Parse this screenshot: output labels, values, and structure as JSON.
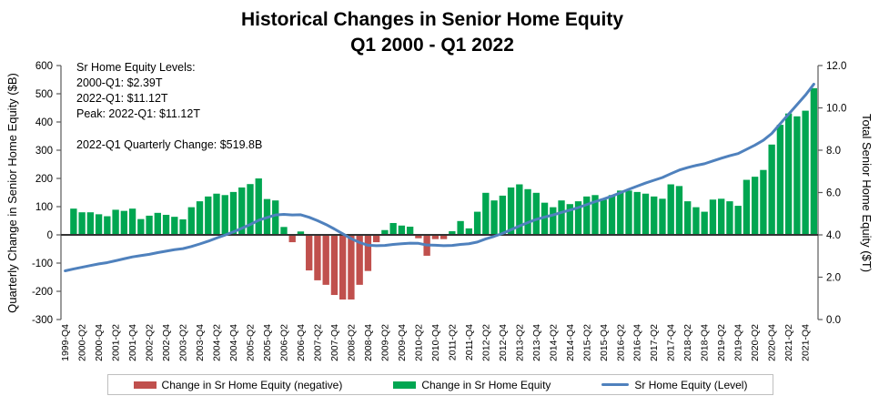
{
  "title": {
    "line1": "Historical Changes in Senior Home Equity",
    "line2": "Q1 2000 - Q1 2022"
  },
  "annotation": {
    "lines": [
      "Sr Home Equity Levels:",
      "2000-Q1: $2.39T",
      "2022-Q1: $11.12T",
      "Peak: 2022-Q1: $11.12T",
      "2022-Q1 Quarterly Change: $519.8B"
    ]
  },
  "left_axis": {
    "title": "Quarterly Change in Senior Home Equity ($B)",
    "min": -300,
    "max": 600,
    "step": 100
  },
  "right_axis": {
    "title": "Total Senior Home Equity ($T)",
    "min": 0,
    "max": 12,
    "step": 2
  },
  "legend": [
    {
      "label": "Change in Sr Home Equity (negative)",
      "color": "#C0504D",
      "marker": "rect"
    },
    {
      "label": "Change in Sr Home Equity",
      "color": "#00A651",
      "marker": "rect"
    },
    {
      "label": "Sr Home Equity (Level)",
      "color": "#4F81BD",
      "marker": "line"
    }
  ],
  "colors": {
    "bar_positive": "#00A651",
    "bar_negative": "#C0504D",
    "level_line": "#4F81BD",
    "axis_line": "#595959",
    "zero_line": "#333333"
  },
  "chart_data": {
    "type": "bar+line combo",
    "grid": false,
    "legend_position": "bottom",
    "left_ylim": [
      -300,
      600
    ],
    "right_ylim": [
      0.0,
      12.0
    ],
    "x_label_every": 2,
    "x_tick_labels": [
      "1999-Q4",
      "2000-Q2",
      "2000-Q4",
      "2001-Q2",
      "2001-Q4",
      "2002-Q2",
      "2002-Q4",
      "2003-Q2",
      "2003-Q4",
      "2004-Q2",
      "2004-Q4",
      "2005-Q2",
      "2005-Q4",
      "2006-Q2",
      "2006-Q4",
      "2007-Q2",
      "2007-Q4",
      "2008-Q2",
      "2008-Q4",
      "2009-Q2",
      "2009-Q4",
      "2010-Q2",
      "2010-Q4",
      "2011-Q2",
      "2011-Q4",
      "2012-Q2",
      "2012-Q4",
      "2013-Q2",
      "2013-Q4",
      "2014-Q2",
      "2014-Q4",
      "2015-Q2",
      "2015-Q4",
      "2016-Q2",
      "2016-Q4",
      "2017-Q2",
      "2017-Q4",
      "2018-Q2",
      "2018-Q4",
      "2019-Q2",
      "2019-Q4",
      "2020-Q2",
      "2020-Q4",
      "2021-Q2",
      "2021-Q4"
    ],
    "series": [
      {
        "name": "Change in Sr Home Equity",
        "type": "bar",
        "axis": "left",
        "units": "$B",
        "values": [
          null,
          93,
          80,
          80,
          73,
          66,
          89,
          85,
          93,
          56,
          68,
          78,
          71,
          64,
          55,
          98,
          119,
          136,
          146,
          141,
          152,
          168,
          180,
          200,
          127,
          122,
          28,
          -26,
          12,
          -126,
          -161,
          -177,
          -213,
          -229,
          -229,
          -177,
          -128,
          -26,
          17,
          42,
          33,
          29,
          -12,
          -74,
          -15,
          -15,
          13,
          49,
          23,
          82,
          149,
          122,
          139,
          168,
          179,
          162,
          149,
          114,
          98,
          122,
          109,
          119,
          136,
          141,
          125,
          141,
          157,
          157,
          152,
          146,
          136,
          128,
          179,
          173,
          119,
          98,
          82,
          125,
          128,
          119,
          103,
          195,
          206,
          230,
          320,
          390,
          430,
          420,
          440,
          519.8
        ]
      },
      {
        "name": "Sr Home Equity (Level)",
        "type": "line",
        "axis": "right",
        "units": "$T",
        "values": [
          2.3,
          2.39,
          2.47,
          2.55,
          2.63,
          2.69,
          2.78,
          2.87,
          2.96,
          3.02,
          3.08,
          3.16,
          3.23,
          3.3,
          3.35,
          3.45,
          3.57,
          3.7,
          3.85,
          3.99,
          4.14,
          4.31,
          4.49,
          4.69,
          4.82,
          4.94,
          4.97,
          4.94,
          4.95,
          4.83,
          4.67,
          4.49,
          4.28,
          4.05,
          3.82,
          3.64,
          3.51,
          3.49,
          3.5,
          3.55,
          3.58,
          3.61,
          3.6,
          3.52,
          3.51,
          3.49,
          3.5,
          3.55,
          3.58,
          3.66,
          3.81,
          3.93,
          4.07,
          4.24,
          4.42,
          4.58,
          4.73,
          4.84,
          4.94,
          5.06,
          5.17,
          5.29,
          5.43,
          5.57,
          5.69,
          5.83,
          5.99,
          6.15,
          6.3,
          6.45,
          6.58,
          6.71,
          6.89,
          7.06,
          7.18,
          7.28,
          7.36,
          7.49,
          7.62,
          7.74,
          7.84,
          8.04,
          8.24,
          8.47,
          8.79,
          9.25,
          9.7,
          10.15,
          10.6,
          11.12
        ]
      }
    ]
  }
}
